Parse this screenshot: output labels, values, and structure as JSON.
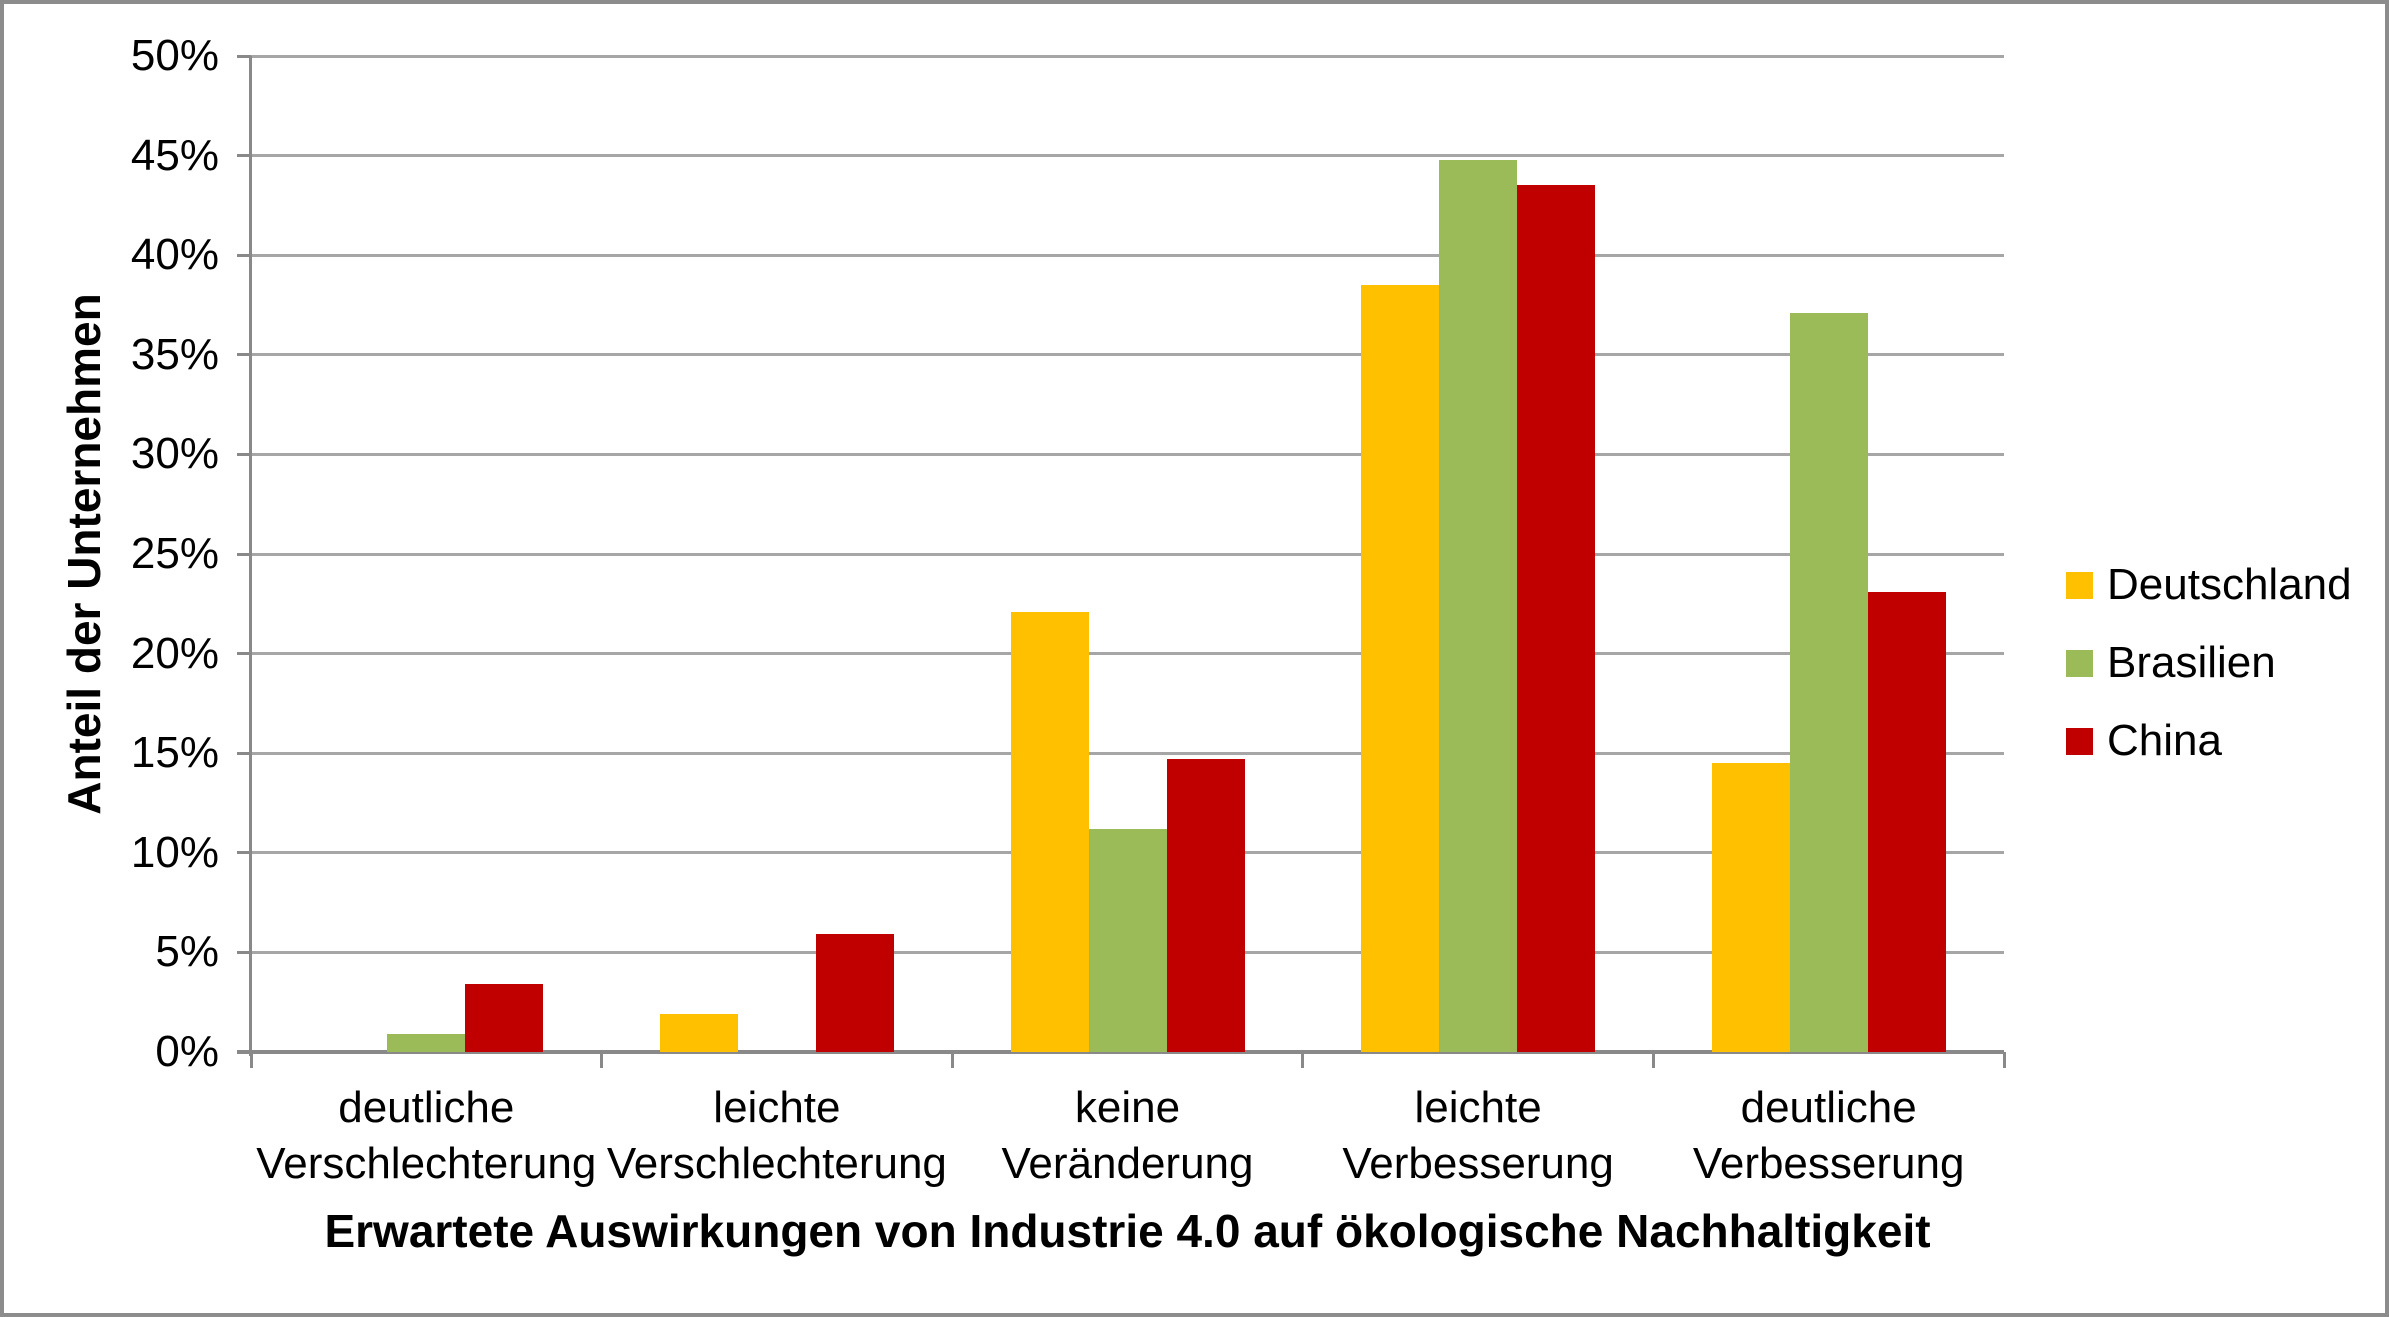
{
  "window": {
    "background": "#ffffff",
    "border_color": "#8c8c8c"
  },
  "chart_data": {
    "type": "bar",
    "title": "",
    "xlabel": "Erwartete Auswirkungen von Industrie 4.0 auf ökologische Nachhaltigkeit",
    "ylabel": "Anteil der Unternehmen",
    "categories": [
      "deutliche Verschlechterung",
      "leichte Verschlechterung",
      "keine Veränderung",
      "leichte Verbesserung",
      "deutliche Verbesserung"
    ],
    "series": [
      {
        "name": "Deutschland",
        "color": "#FFC000",
        "values": [
          0,
          1.9,
          22.1,
          38.5,
          14.5
        ]
      },
      {
        "name": "Brasilien",
        "color": "#9BBB59",
        "values": [
          0.9,
          0,
          11.2,
          44.8,
          37.1
        ]
      },
      {
        "name": "China",
        "color": "#C00000",
        "values": [
          3.4,
          5.9,
          14.7,
          43.5,
          23.1
        ]
      }
    ],
    "ylim": [
      0,
      50
    ],
    "ytick_step": 5,
    "ytick_labels": [
      "0%",
      "5%",
      "10%",
      "15%",
      "20%",
      "25%",
      "30%",
      "35%",
      "40%",
      "45%",
      "50%"
    ],
    "grid": true,
    "legend_position": "right",
    "grid_color": "#A6A6A6",
    "axis_color": "#898989"
  }
}
